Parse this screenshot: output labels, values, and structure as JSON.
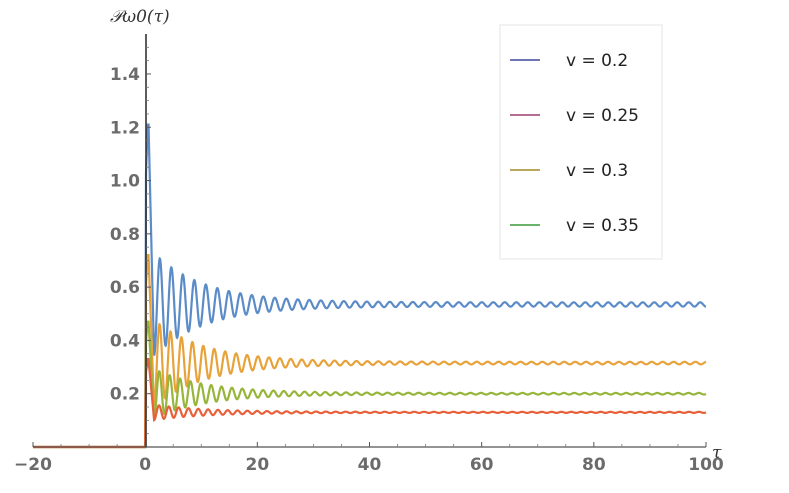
{
  "chart_data": {
    "type": "line",
    "title": "",
    "xlabel": "τ",
    "ylabel": "𝒫ω0(τ)",
    "xlim": [
      -20,
      100
    ],
    "ylim": [
      0,
      1.55
    ],
    "xticks": [
      -20,
      0,
      20,
      40,
      60,
      80,
      100
    ],
    "xtick_labels": [
      "−20",
      "0",
      "20",
      "40",
      "60",
      "80",
      "100"
    ],
    "yticks": [
      0.2,
      0.4,
      0.6,
      0.8,
      1.0,
      1.2,
      1.4
    ],
    "ytick_labels": [
      "0.2",
      "0.4",
      "0.6",
      "0.8",
      "1.0",
      "1.2",
      "1.4"
    ],
    "grid": false,
    "legend_position": "top-right",
    "legend": [
      {
        "label": "v = 0.2",
        "color": "#3f4a9c"
      },
      {
        "label": "v = 0.25",
        "color": "#9c3f6f"
      },
      {
        "label": "v = 0.3",
        "color": "#a08a2a"
      },
      {
        "label": "v = 0.35",
        "color": "#3a9a3a"
      }
    ],
    "series": [
      {
        "color": "#5b8cc8",
        "peak": 1.21,
        "level": 0.535,
        "first_min": 0.33,
        "damping": 0.11,
        "period": 2.05
      },
      {
        "color": "#e8a23a",
        "peak": 0.72,
        "level": 0.315,
        "first_min": 0.14,
        "damping": 0.11,
        "period": 1.95
      },
      {
        "color": "#96b53a",
        "peak": 0.47,
        "level": 0.2,
        "first_min": 0.1,
        "damping": 0.11,
        "period": 1.85
      },
      {
        "color": "#e8603a",
        "peak": 0.33,
        "level": 0.13,
        "first_min": 0.1,
        "damping": 0.11,
        "period": 1.75
      }
    ]
  }
}
